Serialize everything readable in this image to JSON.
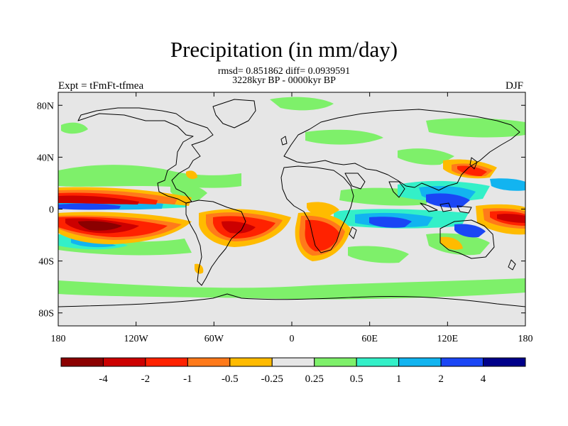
{
  "title": "Precipitation (in mm/day)",
  "stats_line1": "rmsd= 0.851862 diff= 0.0939591",
  "stats_line2": "3228kyr BP - 0000kyr BP",
  "experiment": "Expt = tFmFt-tfmea",
  "season": "DJF",
  "lat_ticks": [
    {
      "value": 80,
      "label": "80N"
    },
    {
      "value": 40,
      "label": "40N"
    },
    {
      "value": 0,
      "label": "0"
    },
    {
      "value": -40,
      "label": "40S"
    },
    {
      "value": -80,
      "label": "80S"
    }
  ],
  "lon_ticks": [
    {
      "value": -180,
      "label": "180"
    },
    {
      "value": -120,
      "label": "120W"
    },
    {
      "value": -60,
      "label": "60W"
    },
    {
      "value": 0,
      "label": "0"
    },
    {
      "value": 60,
      "label": "60E"
    },
    {
      "value": 120,
      "label": "120E"
    },
    {
      "value": 180,
      "label": "180"
    }
  ],
  "colorbar": {
    "colors": [
      "#8b0000",
      "#cc0000",
      "#ff2200",
      "#ff7a1a",
      "#ffbb00",
      "#e6e6e6",
      "#7ef06a",
      "#33f0c8",
      "#12b4f0",
      "#1a46f5",
      "#00008a"
    ],
    "labels": [
      "-4",
      "-2",
      "-1",
      "-0.5",
      "-0.25",
      "0.25",
      "0.5",
      "1",
      "2",
      "4"
    ]
  },
  "map_fill_color": "#e6e6e6"
}
